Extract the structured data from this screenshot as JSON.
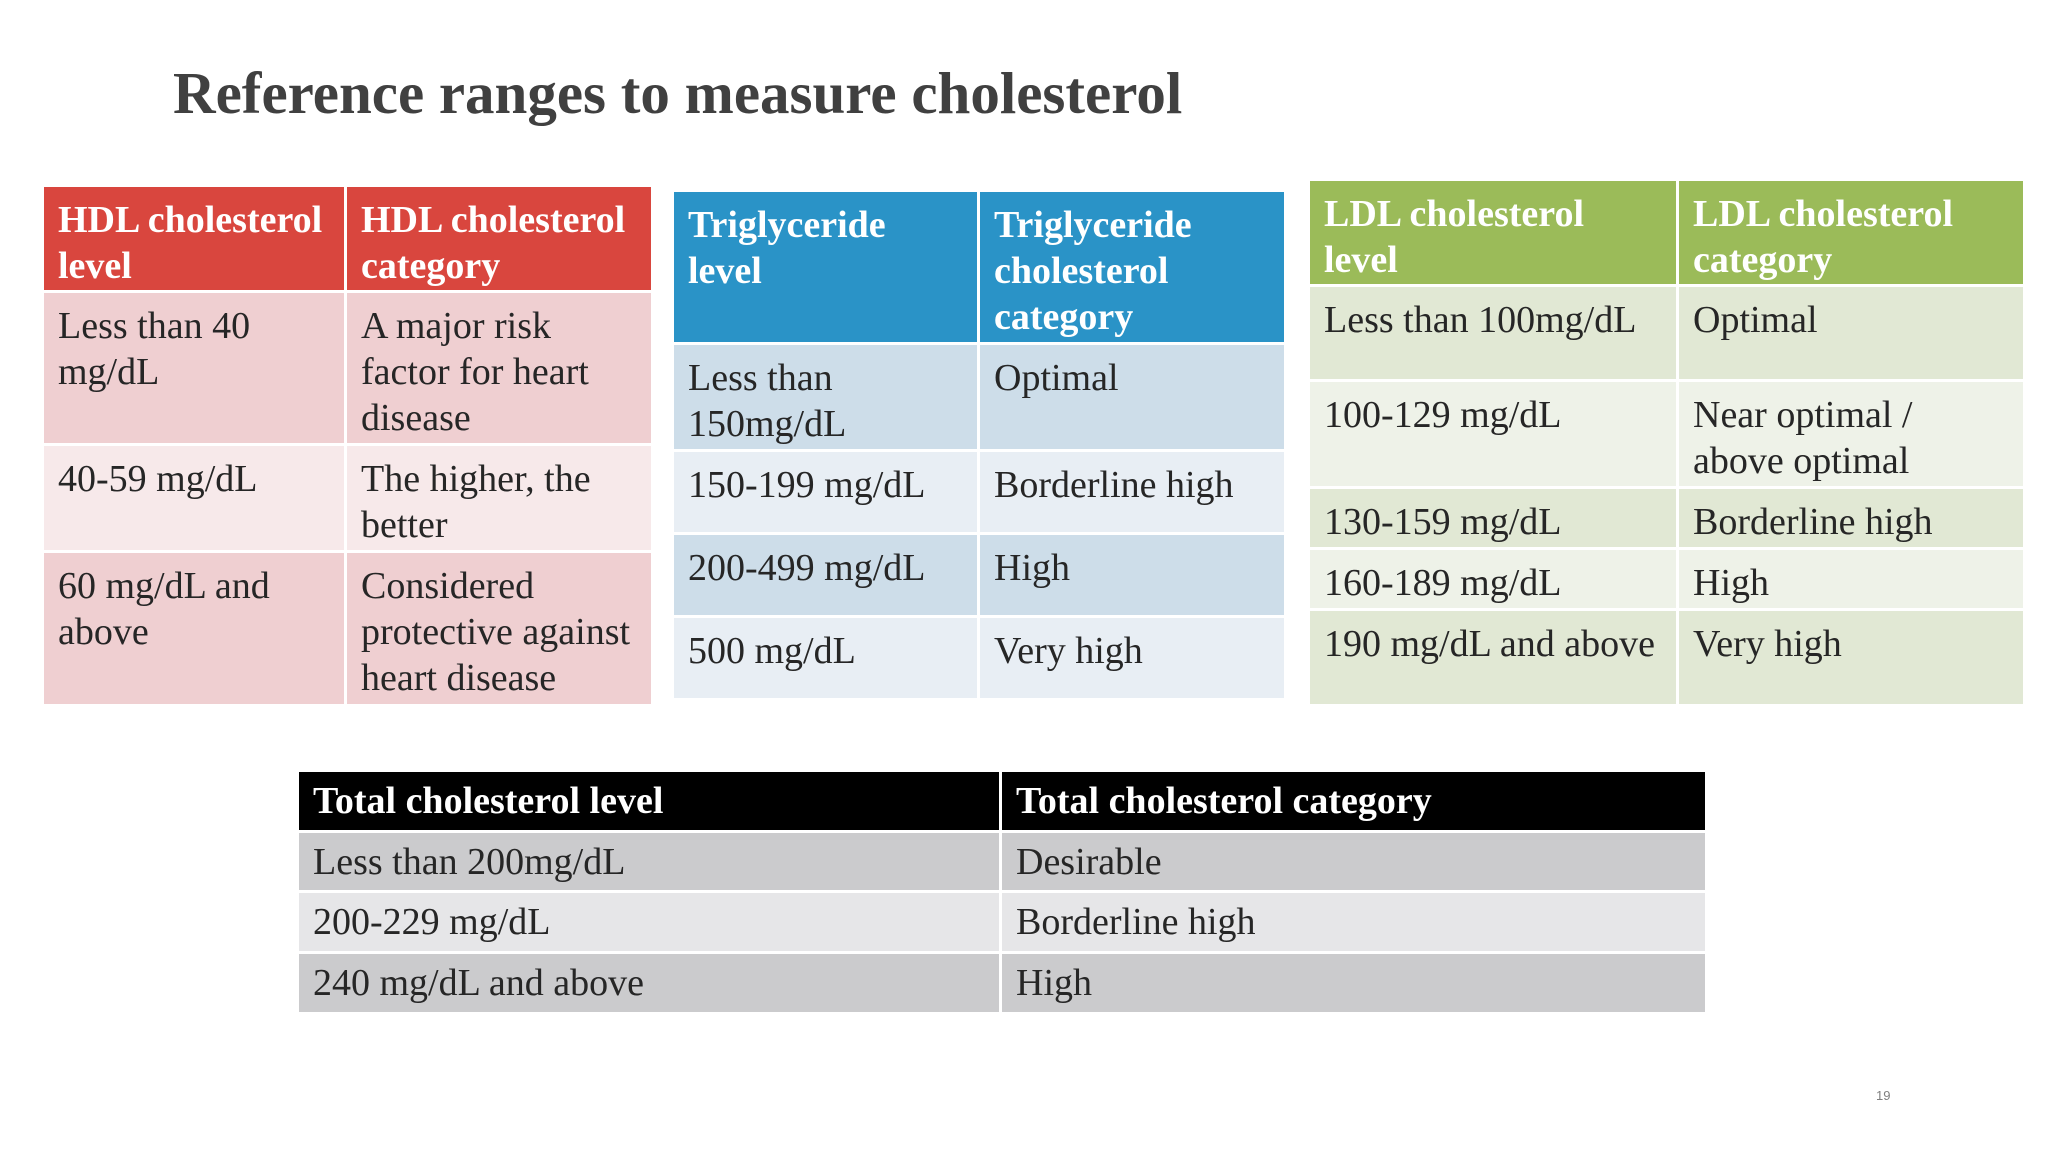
{
  "title": "Reference ranges to measure cholesterol",
  "page_number": "19",
  "colors": {
    "hdl_header": "#d9463e",
    "triglyceride_header": "#2a93c7",
    "ldl_header": "#9bbb59",
    "total_header": "#000000"
  },
  "hdl_table": {
    "headers": [
      "HDL cholesterol level",
      "HDL cholesterol category"
    ],
    "rows": [
      [
        "Less than 40 mg/dL",
        "A major risk factor for heart disease"
      ],
      [
        "40-59 mg/dL",
        "The higher, the better"
      ],
      [
        "60 mg/dL and above",
        "Considered protective against heart disease"
      ]
    ]
  },
  "triglyceride_table": {
    "headers": [
      "Triglyceride level",
      "Triglyceride cholesterol category"
    ],
    "rows": [
      [
        "Less than 150mg/dL",
        "Optimal"
      ],
      [
        "150-199 mg/dL",
        "Borderline high"
      ],
      [
        "200-499 mg/dL",
        "High"
      ],
      [
        "500 mg/dL",
        "Very high"
      ]
    ]
  },
  "ldl_table": {
    "headers": [
      "LDL cholesterol level",
      "LDL cholesterol category"
    ],
    "rows": [
      [
        "Less than 100mg/dL",
        "Optimal"
      ],
      [
        "100-129 mg/dL",
        "Near optimal / above optimal"
      ],
      [
        "130-159 mg/dL",
        "Borderline high"
      ],
      [
        "160-189 mg/dL",
        "High"
      ],
      [
        "190 mg/dL and above",
        "Very high"
      ]
    ]
  },
  "total_table": {
    "headers": [
      "Total cholesterol level",
      "Total cholesterol category"
    ],
    "rows": [
      [
        "Less than 200mg/dL",
        "Desirable"
      ],
      [
        "200-229 mg/dL",
        "Borderline high"
      ],
      [
        "240 mg/dL and above",
        "High"
      ]
    ]
  }
}
